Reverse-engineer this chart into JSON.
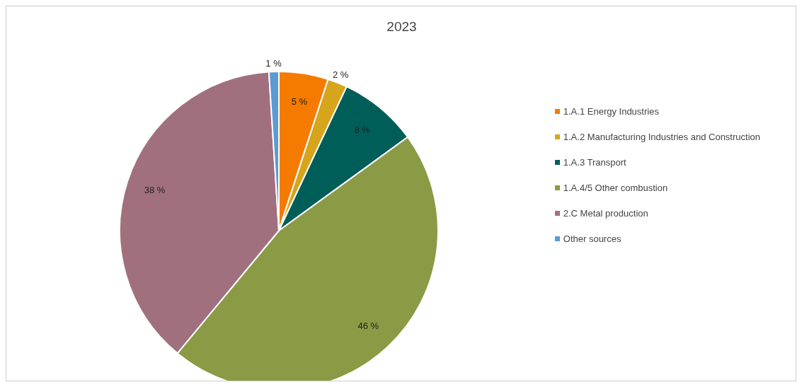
{
  "chart_data": {
    "type": "pie",
    "title": "2023",
    "categories": [
      "1.A.1 Energy Industries",
      "1.A.2 Manufacturing Industries and Construction",
      "1.A.3 Transport",
      "1.A.4/5 Other combustion",
      "2.C Metal production",
      "Other sources"
    ],
    "values": [
      5,
      2,
      8,
      46,
      38,
      1
    ],
    "value_labels": [
      "5 %",
      "2 %",
      "8 %",
      "46 %",
      "38 %",
      "1 %"
    ],
    "colors": [
      "#f47b00",
      "#d6a51c",
      "#005e58",
      "#8b9a45",
      "#a1707f",
      "#5b9bd5"
    ],
    "legend": "right"
  }
}
